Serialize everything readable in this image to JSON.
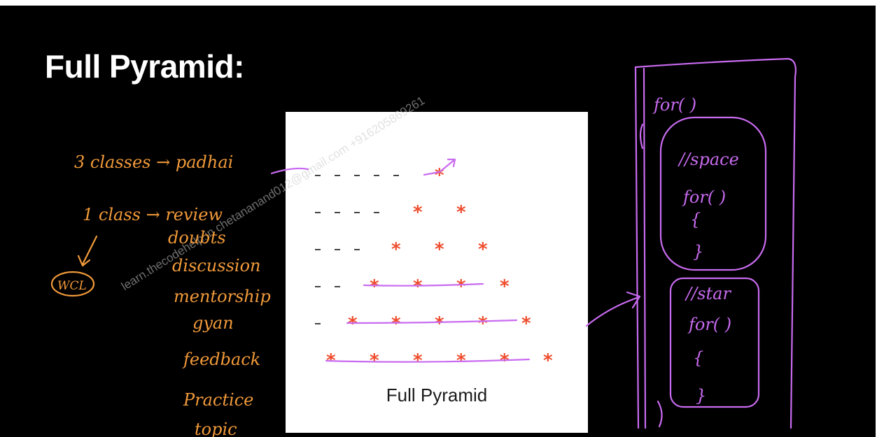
{
  "slide": {
    "title": "Full Pyramid:",
    "figure_caption": "Full Pyramid",
    "star_glyph": "*",
    "pyramid_rows": [
      1,
      2,
      3,
      4,
      5,
      6
    ],
    "star_color": "#ee4e2e",
    "background_color": "#000000"
  },
  "watermark": "learn.thecodehelp.in chetananand012@gmail.com +916205869261",
  "annotations_left": {
    "color": "#f19a3a",
    "lines": [
      "3 classes → padhai",
      "1 class → review",
      "doubts",
      "discussion",
      "mentorship",
      "gyan",
      "feedback",
      "Practice",
      "topic"
    ],
    "circled_note": "WCL"
  },
  "annotations_right": {
    "color": "#c96bf0",
    "outer_loop": "for( )",
    "inner_loop_1_comment": "//space",
    "inner_loop_1": "for( )",
    "inner_loop_2_comment": "//star",
    "inner_loop_2": "for( )"
  }
}
